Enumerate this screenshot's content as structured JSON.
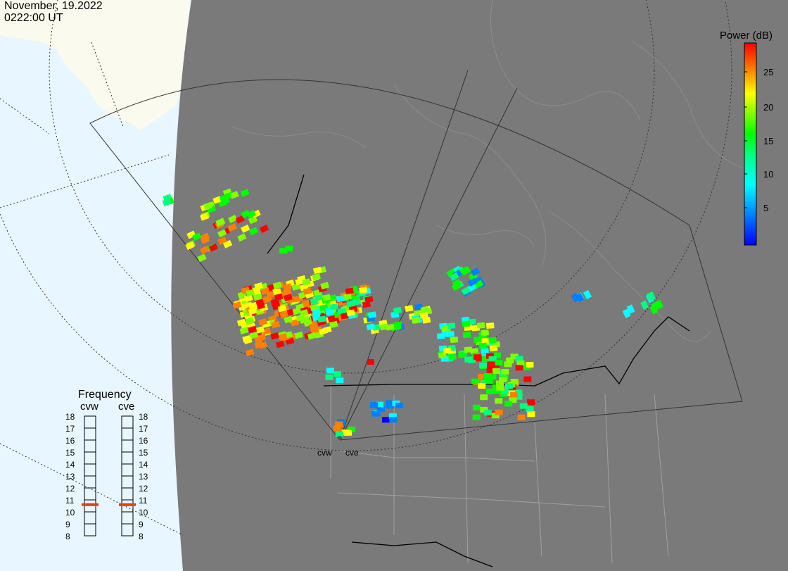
{
  "header": {
    "date": "November, 19.2022",
    "time": "0222:00 UT"
  },
  "colorbar": {
    "title": "Power (dB)",
    "ticks": [
      "25",
      "20",
      "15",
      "10",
      "5"
    ],
    "colors": [
      "#0000ff",
      "#0080ff",
      "#00ffff",
      "#00ff80",
      "#00ff00",
      "#80ff00",
      "#ffff00",
      "#ff8000",
      "#ff0000"
    ]
  },
  "frequency": {
    "title": "Frequency",
    "radars": [
      "cvw",
      "cve"
    ],
    "scale": [
      "18",
      "17",
      "16",
      "15",
      "14",
      "13",
      "12",
      "11",
      "10",
      "9",
      "8"
    ],
    "selected_mhz": [
      10.6,
      10.6
    ],
    "marker_color": "#e04010"
  },
  "radar_sites": {
    "labels": [
      "cvw",
      "cve"
    ]
  },
  "map": {
    "ocean_color": "#e8f6ff",
    "land_color": "#fafaee",
    "night_color": "#7a7a7a",
    "border_color": "#9a9a9a"
  }
}
